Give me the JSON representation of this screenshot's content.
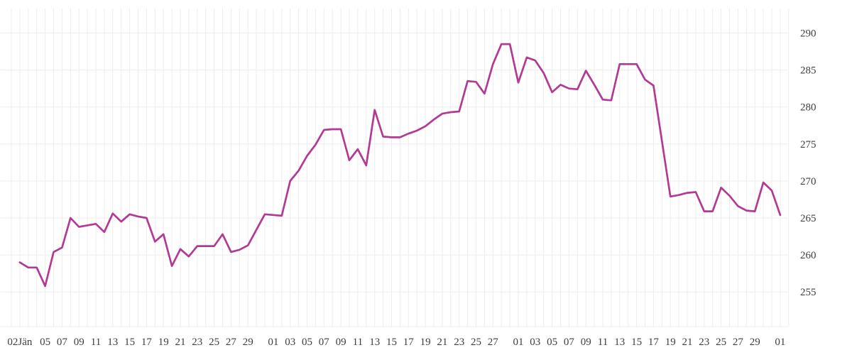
{
  "page": {
    "background": "#ffffff"
  },
  "chart_data": {
    "type": "line",
    "title": "",
    "legend": false,
    "grid": true,
    "grid_style": {
      "vertical": "one line per day",
      "horizontal": "every 5 units"
    },
    "x_axis": {
      "side": "bottom",
      "kind": "time-daily",
      "tick_labels": [
        {
          "t": "02Jän",
          "d": 1
        },
        {
          "t": "05",
          "d": 4
        },
        {
          "t": "07",
          "d": 6
        },
        {
          "t": "09",
          "d": 8
        },
        {
          "t": "11",
          "d": 10
        },
        {
          "t": "13",
          "d": 12
        },
        {
          "t": "15",
          "d": 14
        },
        {
          "t": "17",
          "d": 16
        },
        {
          "t": "19",
          "d": 18
        },
        {
          "t": "21",
          "d": 20
        },
        {
          "t": "23",
          "d": 22
        },
        {
          "t": "25",
          "d": 24
        },
        {
          "t": "27",
          "d": 26
        },
        {
          "t": "29",
          "d": 28
        },
        {
          "t": "01",
          "d": 31
        },
        {
          "t": "03",
          "d": 33
        },
        {
          "t": "05",
          "d": 35
        },
        {
          "t": "07",
          "d": 37
        },
        {
          "t": "09",
          "d": 39
        },
        {
          "t": "11",
          "d": 41
        },
        {
          "t": "13",
          "d": 43
        },
        {
          "t": "15",
          "d": 45
        },
        {
          "t": "17",
          "d": 47
        },
        {
          "t": "19",
          "d": 49
        },
        {
          "t": "21",
          "d": 51
        },
        {
          "t": "23",
          "d": 53
        },
        {
          "t": "25",
          "d": 55
        },
        {
          "t": "27",
          "d": 57
        },
        {
          "t": "01",
          "d": 60
        },
        {
          "t": "03",
          "d": 62
        },
        {
          "t": "05",
          "d": 64
        },
        {
          "t": "07",
          "d": 66
        },
        {
          "t": "09",
          "d": 68
        },
        {
          "t": "11",
          "d": 70
        },
        {
          "t": "13",
          "d": 72
        },
        {
          "t": "15",
          "d": 74
        },
        {
          "t": "17",
          "d": 76
        },
        {
          "t": "19",
          "d": 78
        },
        {
          "t": "21",
          "d": 80
        },
        {
          "t": "23",
          "d": 82
        },
        {
          "t": "25",
          "d": 84
        },
        {
          "t": "27",
          "d": 86
        },
        {
          "t": "29",
          "d": 88
        },
        {
          "t": "01",
          "d": 91
        }
      ],
      "total_grid_days": 93
    },
    "y_axis": {
      "side": "right",
      "ticks": [
        290,
        285,
        280,
        275,
        270,
        265,
        260,
        255
      ],
      "ylim": [
        250,
        293.3
      ]
    },
    "series": [
      {
        "color": "#b23a94",
        "points_start_day": 1,
        "values": [
          259.0,
          258.3,
          258.3,
          255.8,
          260.4,
          261.0,
          265.0,
          263.8,
          264.0,
          264.2,
          263.1,
          265.6,
          264.5,
          265.5,
          265.2,
          265.0,
          261.8,
          262.8,
          258.5,
          260.8,
          259.8,
          261.2,
          261.2,
          261.2,
          262.8,
          260.4,
          260.7,
          261.3,
          263.4,
          265.5,
          265.4,
          265.3,
          270.0,
          271.4,
          273.4,
          274.9,
          276.9,
          277.0,
          277.0,
          272.8,
          274.3,
          272.1,
          279.6,
          276.0,
          275.9,
          275.9,
          276.4,
          276.8,
          277.4,
          278.3,
          279.1,
          279.3,
          279.4,
          283.5,
          283.4,
          281.8,
          285.8,
          288.5,
          288.5,
          283.3,
          286.7,
          286.3,
          284.6,
          282.0,
          283.0,
          282.5,
          282.4,
          284.9,
          283.0,
          281.0,
          280.9,
          285.8,
          285.8,
          285.8,
          283.7,
          282.9,
          275.4,
          267.9,
          268.1,
          268.4,
          268.5,
          265.9,
          265.9,
          269.1,
          268.0,
          266.6,
          266.0,
          265.9,
          269.8,
          268.7,
          265.4
        ]
      }
    ],
    "colors": {
      "line": "#b23a94",
      "grid": "#ededed",
      "text": "#3e3e3e",
      "background": "#ffffff"
    }
  }
}
